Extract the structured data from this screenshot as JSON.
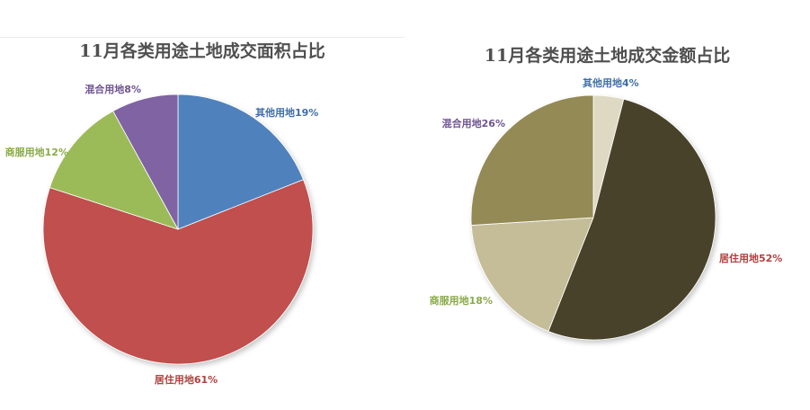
{
  "chart_data": [
    {
      "type": "pie",
      "title": "11月各类用途土地成交面积占比",
      "slices": [
        {
          "name": "其他用地",
          "value": 19,
          "label": "其他用地19%",
          "color": "#4f81bd",
          "label_color": "#3f6ea8"
        },
        {
          "name": "居住用地",
          "value": 61,
          "label": "居住用地61%",
          "color": "#c0504d",
          "label_color": "#b0413e"
        },
        {
          "name": "商服用地",
          "value": 12,
          "label": "商服用地12%",
          "color": "#9bbb59",
          "label_color": "#8aaa48"
        },
        {
          "name": "混合用地",
          "value": 8,
          "label": "混合用地8%",
          "color": "#8064a2",
          "label_color": "#6f5391"
        }
      ]
    },
    {
      "type": "pie",
      "title": "11月各类用途土地成交金额占比",
      "slices": [
        {
          "name": "其他用地",
          "value": 4,
          "label": "其他用地4%",
          "color": "#ddd9c3",
          "label_color": "#3f6ea8"
        },
        {
          "name": "居住用地",
          "value": 52,
          "label": "居住用地52%",
          "color": "#49432b",
          "label_color": "#b0413e"
        },
        {
          "name": "商服用地",
          "value": 18,
          "label": "商服用地18%",
          "color": "#c4bd97",
          "label_color": "#8aaa48"
        },
        {
          "name": "混合用地",
          "value": 26,
          "label": "混合用地26%",
          "color": "#948a54",
          "label_color": "#6f5391"
        }
      ]
    }
  ]
}
